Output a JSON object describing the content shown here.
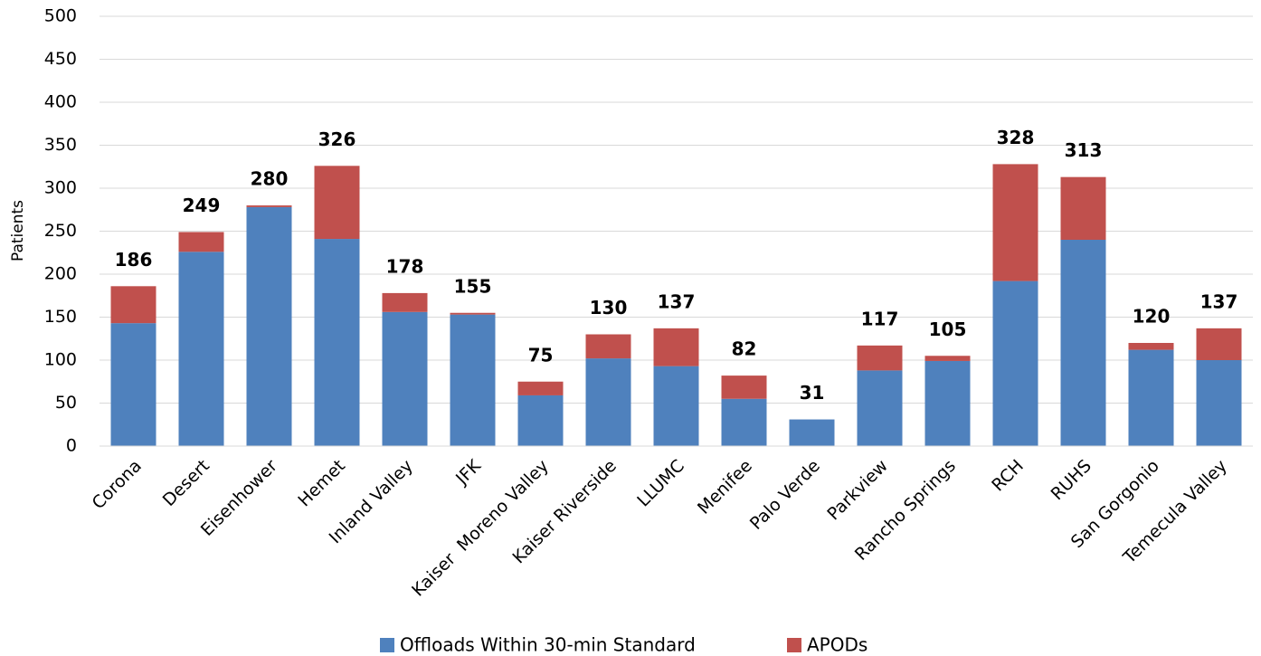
{
  "chart_data": {
    "type": "stacked_bar",
    "y_label": "Patients",
    "categories": [
      "Corona",
      "Desert",
      "Eisenhower",
      "Hemet",
      "Inland Valley",
      "JFK",
      "Kaiser  Moreno Valley",
      "Kaiser Riverside",
      "LLUMC",
      "Menifee",
      "Palo Verde",
      "Parkview",
      "Rancho Springs",
      "RCH",
      "RUHS",
      "San Gorgonio",
      "Temecula Valley"
    ],
    "series": [
      {
        "name": "Offloads Within 30-min Standard",
        "color": "#4f81bd",
        "values": [
          143,
          226,
          278,
          241,
          156,
          153,
          59,
          102,
          93,
          55,
          31,
          88,
          99,
          192,
          240,
          112,
          100
        ]
      },
      {
        "name": "APODs",
        "color": "#c0504d",
        "values": [
          43,
          23,
          2,
          85,
          22,
          2,
          16,
          28,
          44,
          27,
          0,
          29,
          6,
          136,
          73,
          8,
          37
        ]
      }
    ],
    "totals": [
      186,
      249,
      280,
      326,
      178,
      155,
      75,
      130,
      137,
      82,
      31,
      117,
      105,
      328,
      313,
      120,
      137
    ],
    "ylim": [
      0,
      500
    ],
    "yticks": [
      0,
      50,
      100,
      150,
      200,
      250,
      300,
      350,
      400,
      450,
      500
    ],
    "grid": true
  }
}
